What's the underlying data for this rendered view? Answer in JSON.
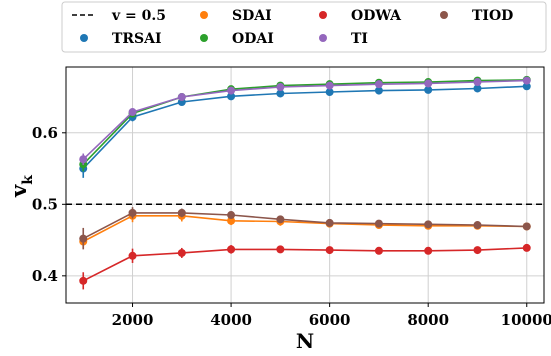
{
  "chart_data": {
    "type": "line",
    "xlabel": "N",
    "ylabel_main": "v",
    "ylabel_sub": "k",
    "x": [
      1000,
      2000,
      3000,
      4000,
      5000,
      6000,
      7000,
      8000,
      9000,
      10000
    ],
    "xlim": [
      650,
      10350
    ],
    "ylim": [
      0.362,
      0.692
    ],
    "xticks": [
      2000,
      4000,
      6000,
      8000,
      10000
    ],
    "yticks": [
      0.4,
      0.5,
      0.6
    ],
    "grid": true,
    "legend_position": "top",
    "reference_line": {
      "label": "v = 0.5",
      "y": 0.5,
      "color": "#000000",
      "style": "dashed"
    },
    "series": [
      {
        "name": "TRSAI",
        "color": "#1f77b4",
        "values": [
          0.55,
          0.622,
          0.643,
          0.651,
          0.655,
          0.657,
          0.659,
          0.66,
          0.662,
          0.665
        ],
        "errors": [
          0.013,
          0.006,
          0.004,
          0.003,
          0.003,
          0.002,
          0.002,
          0.002,
          0.002,
          0.002
        ]
      },
      {
        "name": "SDAI",
        "color": "#ff7f0e",
        "values": [
          0.448,
          0.484,
          0.484,
          0.477,
          0.476,
          0.473,
          0.471,
          0.47,
          0.47,
          0.469
        ],
        "errors": [
          0.01,
          0.009,
          0.008,
          0.006,
          0.006,
          0.004,
          0.004,
          0.004,
          0.003,
          0.003
        ]
      },
      {
        "name": "ODAI",
        "color": "#2ca02c",
        "values": [
          0.556,
          0.627,
          0.65,
          0.661,
          0.666,
          0.668,
          0.67,
          0.671,
          0.673,
          0.674
        ],
        "errors": [
          0.01,
          0.005,
          0.004,
          0.003,
          0.002,
          0.002,
          0.002,
          0.002,
          0.002,
          0.002
        ]
      },
      {
        "name": "TI",
        "color": "#9467bd",
        "values": [
          0.563,
          0.629,
          0.65,
          0.659,
          0.664,
          0.666,
          0.668,
          0.669,
          0.671,
          0.673
        ],
        "errors": [
          0.008,
          0.005,
          0.004,
          0.003,
          0.002,
          0.002,
          0.002,
          0.002,
          0.002,
          0.002
        ]
      },
      {
        "name": "ODWA",
        "color": "#d62728",
        "values": [
          0.393,
          0.428,
          0.432,
          0.437,
          0.437,
          0.436,
          0.435,
          0.435,
          0.436,
          0.439
        ],
        "errors": [
          0.012,
          0.01,
          0.007,
          0.006,
          0.005,
          0.004,
          0.004,
          0.003,
          0.003,
          0.003
        ]
      },
      {
        "name": "TIOD",
        "color": "#8c564b",
        "values": [
          0.452,
          0.488,
          0.488,
          0.485,
          0.479,
          0.474,
          0.473,
          0.472,
          0.471,
          0.469
        ],
        "errors": [
          0.015,
          0.008,
          0.006,
          0.005,
          0.004,
          0.004,
          0.004,
          0.003,
          0.003,
          0.003
        ]
      }
    ],
    "legend_order": [
      "v=0.5",
      "TRSAI",
      "SDAI",
      "ODAI",
      "ODWA",
      "TI",
      "TIOD"
    ]
  }
}
